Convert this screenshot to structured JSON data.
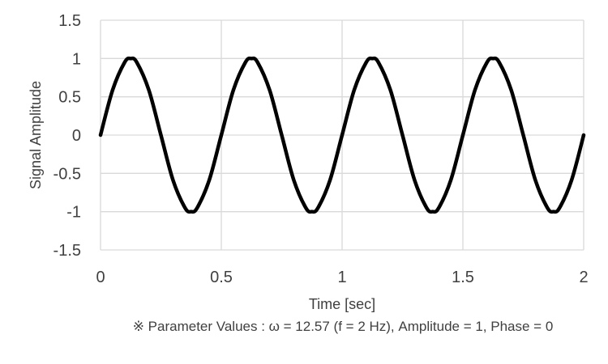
{
  "chart_data": {
    "type": "line",
    "title": "",
    "xlabel": "Time [sec]",
    "ylabel": "Signal Amplitude",
    "xlim": [
      0,
      2
    ],
    "ylim": [
      -1.5,
      1.5
    ],
    "x_ticks": [
      0,
      0.5,
      1,
      1.5,
      2
    ],
    "x_tick_labels": [
      "0",
      "0.5",
      "1",
      "1.5",
      "2"
    ],
    "y_ticks": [
      1.5,
      1,
      0.5,
      0,
      -0.5,
      -1,
      -1.5
    ],
    "y_tick_labels": [
      "1.5",
      "1",
      "0.5",
      "0",
      "-0.5",
      "-1",
      "-1.5"
    ],
    "grid": true,
    "legend": "none",
    "series": [
      {
        "color": "#000000",
        "x": [
          0,
          0.05,
          0.1,
          0.125,
          0.15,
          0.2,
          0.25,
          0.3,
          0.35,
          0.375,
          0.4,
          0.45,
          0.5,
          0.55,
          0.6,
          0.625,
          0.65,
          0.7,
          0.75,
          0.8,
          0.85,
          0.875,
          0.9,
          0.95,
          1,
          1.05,
          1.1,
          1.125,
          1.15,
          1.2,
          1.25,
          1.3,
          1.35,
          1.375,
          1.4,
          1.45,
          1.5,
          1.55,
          1.6,
          1.625,
          1.65,
          1.7,
          1.75,
          1.8,
          1.85,
          1.875,
          1.9,
          1.95,
          2
        ],
        "values": [
          0,
          0.588,
          0.951,
          1,
          0.951,
          0.588,
          0,
          -0.588,
          -0.951,
          -1,
          -0.951,
          -0.588,
          0,
          0.588,
          0.951,
          1,
          0.951,
          0.588,
          0,
          -0.588,
          -0.951,
          -1,
          -0.951,
          -0.588,
          0,
          0.588,
          0.951,
          1,
          0.951,
          0.588,
          0,
          -0.588,
          -0.951,
          -1,
          -0.951,
          -0.588,
          0,
          0.588,
          0.951,
          1,
          0.951,
          0.588,
          0,
          -0.588,
          -0.951,
          -1,
          -0.951,
          -0.588,
          0
        ]
      }
    ],
    "annotation": "※ Parameter Values : ω = 12.57 (f = 2 Hz), Amplitude = 1, Phase = 0"
  }
}
